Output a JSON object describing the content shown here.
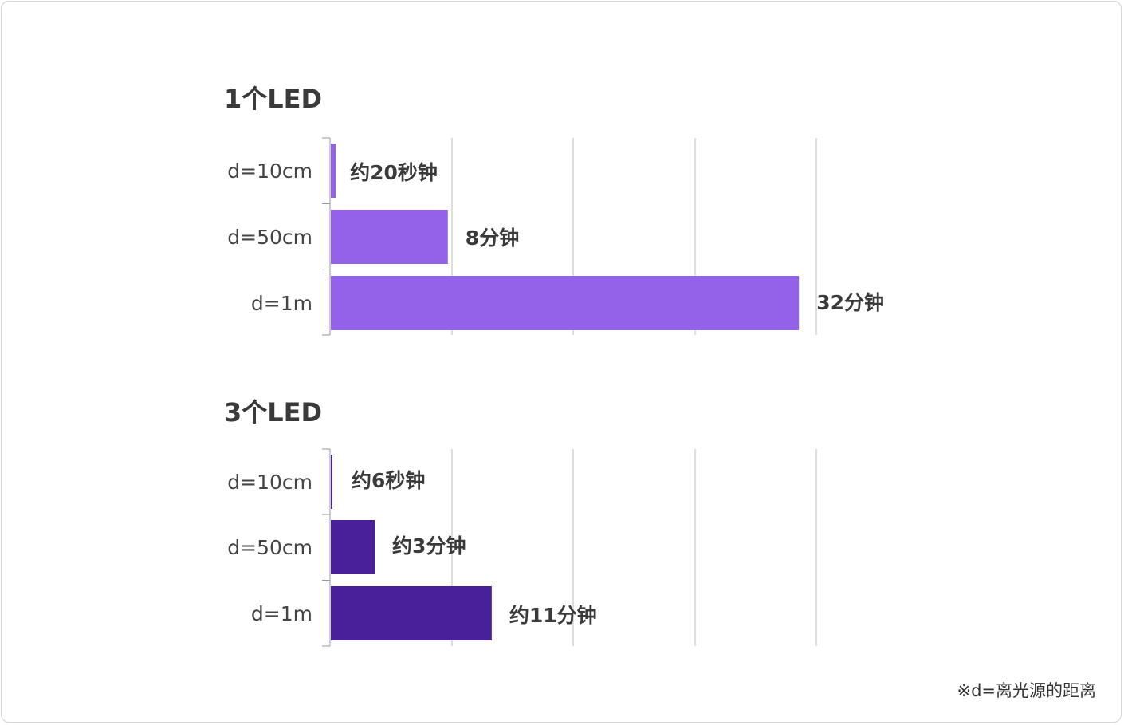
{
  "chart_data": [
    {
      "type": "bar",
      "orientation": "horizontal",
      "title": "1个LED",
      "categories": [
        "d=10cm",
        "d=50cm",
        "d=1m"
      ],
      "values": [
        0.333,
        8,
        32
      ],
      "value_labels": [
        "约20秒钟",
        "8分钟",
        "32分钟"
      ],
      "unit": "分钟",
      "xlim": [
        0,
        33.3
      ],
      "grid": true,
      "color": "#9362e6"
    },
    {
      "type": "bar",
      "orientation": "horizontal",
      "title": "3个LED",
      "categories": [
        "d=10cm",
        "d=50cm",
        "d=1m"
      ],
      "values": [
        0.1,
        3,
        11
      ],
      "value_labels": [
        "约6秒钟",
        "约3分钟",
        "约11分钟"
      ],
      "unit": "分钟",
      "xlim": [
        0,
        33.3
      ],
      "grid": true,
      "color": "#4a1f9a"
    }
  ],
  "footnote": "※d=离光源的距离"
}
